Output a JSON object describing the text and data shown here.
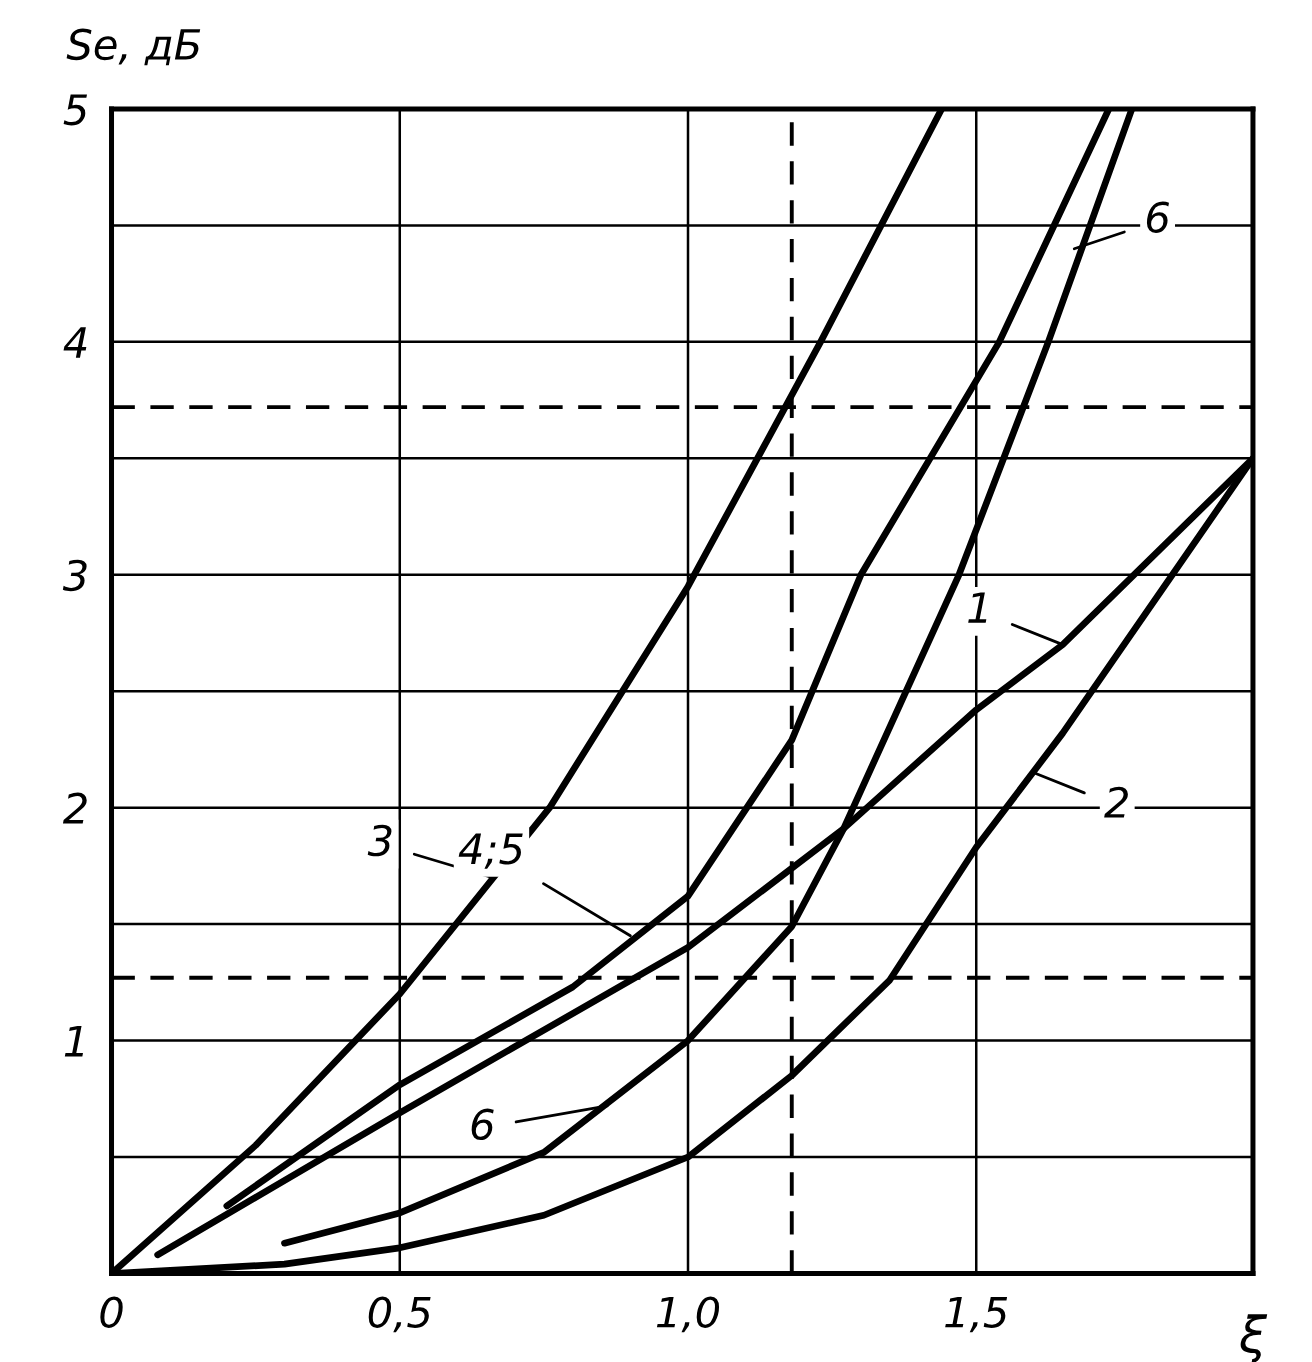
{
  "chart_data": {
    "type": "line",
    "xlabel": "ξ",
    "ylabel": "Se, дБ",
    "xlim": [
      0,
      1.98
    ],
    "ylim": [
      0,
      5
    ],
    "xticks": [
      {
        "value": 0,
        "label": "0"
      },
      {
        "value": 0.5,
        "label": "0,5"
      },
      {
        "value": 1.0,
        "label": "1,0"
      },
      {
        "value": 1.5,
        "label": "1,5"
      }
    ],
    "yticks": [
      {
        "value": 0,
        "label": null
      },
      {
        "value": 0.5,
        "label": null
      },
      1,
      {
        "value": 1.5,
        "label": null
      },
      2,
      {
        "value": 2.5,
        "label": null
      },
      3,
      {
        "value": 3.5,
        "label": null
      },
      4,
      {
        "value": 4.5,
        "label": null
      },
      5
    ],
    "grid": true,
    "marker": "none",
    "line_style": "solid",
    "series": [
      {
        "color": "#000000",
        "x": [
          0,
          0.25,
          0.5,
          0.76,
          1.0,
          1.23,
          1.44
        ],
        "values": [
          0,
          0.55,
          1.2,
          2.0,
          2.95,
          4.0,
          5.0
        ]
      },
      {
        "color": "#000000",
        "x": [
          0.2,
          0.5,
          0.8,
          1.0,
          1.18,
          1.3,
          1.54,
          1.73
        ],
        "values": [
          0.29,
          0.81,
          1.23,
          1.62,
          2.29,
          3.0,
          4.0,
          5.0
        ]
      },
      {
        "color": "#000000",
        "x": [
          0.08,
          0.5,
          1.0,
          1.27,
          1.5,
          1.65,
          1.98
        ],
        "values": [
          0.08,
          0.69,
          1.4,
          1.91,
          2.42,
          2.7,
          3.5
        ]
      },
      {
        "color": "#000000",
        "x": [
          0,
          0.3,
          0.5,
          0.75,
          1.0,
          1.18,
          1.35,
          1.5,
          1.65,
          1.98
        ],
        "values": [
          0,
          0.04,
          0.11,
          0.25,
          0.5,
          0.85,
          1.26,
          1.83,
          2.32,
          3.5
        ]
      },
      {
        "color": "#000000",
        "x": [
          0.3,
          0.5,
          0.75,
          1.0,
          1.18,
          1.27,
          1.47,
          1.625,
          1.77
        ],
        "values": [
          0.13,
          0.26,
          0.52,
          1.0,
          1.49,
          1.91,
          3.0,
          4.0,
          5.0
        ]
      }
    ],
    "ref_lines": [
      {
        "axis": "x",
        "value": 1.18,
        "color": "#000000",
        "line_style": "dashed"
      },
      {
        "axis": "y",
        "value": 1.27,
        "color": "#000000",
        "line_style": "dashed"
      },
      {
        "axis": "y",
        "value": 3.72,
        "color": "#000000",
        "line_style": "dashed"
      }
    ],
    "annotations": [
      {
        "text": "3",
        "x": 0.66,
        "y": 1.7
      },
      {
        "text": "4;5",
        "x": 0.9,
        "y": 1.45
      },
      {
        "text": "6",
        "x": 0.86,
        "y": 0.72
      },
      {
        "text": "1",
        "x": 1.65,
        "y": 2.7
      },
      {
        "text": "2",
        "x": 1.6,
        "y": 2.15
      },
      {
        "text": "6",
        "x": 1.67,
        "y": 4.4
      }
    ]
  }
}
